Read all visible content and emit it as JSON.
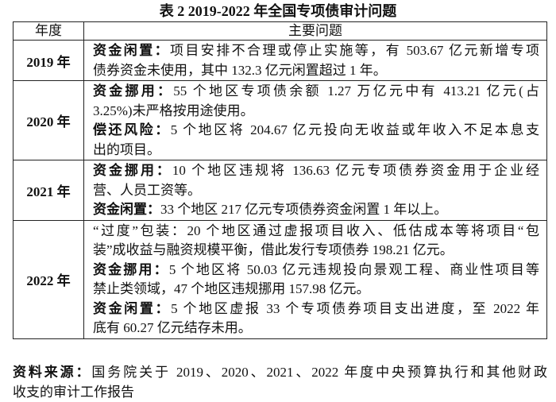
{
  "title": "表 2 2019-2022 年全国专项债审计问题",
  "headers": [
    "年度",
    "主要问题"
  ],
  "rows": [
    {
      "year": "2019 年",
      "items": [
        {
          "label": "资金闲置：",
          "bold": true,
          "lines": [
            "项目安排不合理或停止实施等，有 503.67 亿元新增专项",
            "债券资金未使用，其中 132.3 亿元闲置超过 1 年。"
          ]
        }
      ]
    },
    {
      "year": "2020 年",
      "items": [
        {
          "label": "资金挪用：",
          "bold": true,
          "lines": [
            "55 个地区专项债余额 1.27 万亿元中有 413.21 亿元(占",
            "3.25%)未严格按用途使用。"
          ]
        },
        {
          "label": "偿还风险：",
          "bold": true,
          "lines": [
            "5 个地区将 204.67 亿元投向无收益或年收入不足本息支",
            "出的项目。"
          ]
        }
      ]
    },
    {
      "year": "2021 年",
      "items": [
        {
          "label": "资金挪用：",
          "bold": true,
          "lines": [
            "10 个地区违规将 136.63 亿元专项债券资金用于企业经",
            "营、人员工资等。"
          ]
        },
        {
          "label": "资金闲置：",
          "bold": true,
          "lines": [
            "33 个地区 217 亿元专项债券资金闲置 1 年以上。"
          ]
        }
      ]
    },
    {
      "year": "2022 年",
      "items": [
        {
          "label": "“过度”包装：",
          "bold": false,
          "lines": [
            "20 个地区通过虚报项目收入、低估成本等将项目“包",
            "装”成收益与融资规模平衡，借此发行专项债券 198.21 亿元。"
          ]
        },
        {
          "label": "资金挪用：",
          "bold": true,
          "lines": [
            "5 个地区将 50.03 亿元违规投向景观工程、商业性项目等",
            "禁止类领域，47 个地区违规挪用 157.98 亿元。"
          ]
        },
        {
          "label": "资金闲置：",
          "bold": true,
          "lines": [
            "5 个地区虚报 33 个专项债券项目支出进度，至 2022 年",
            "底有 60.27 亿元结存未用。"
          ]
        }
      ]
    }
  ],
  "source": {
    "label": "资料来源：",
    "lines": [
      "国务院关于 2019、2020、2021、2022 年度中央预算执行和其他财政",
      "收支的审计工作报告"
    ]
  }
}
